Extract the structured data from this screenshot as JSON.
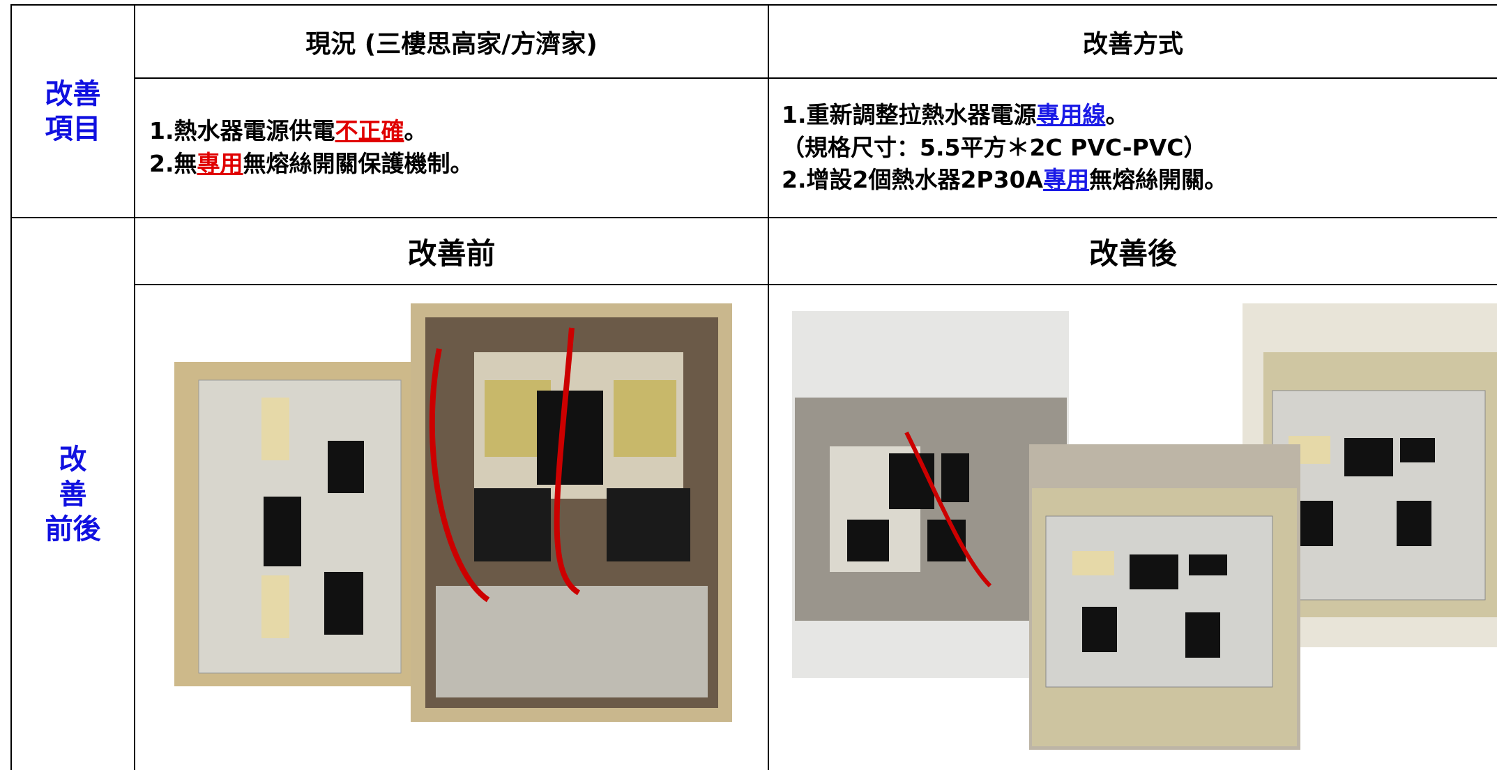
{
  "left_labels": [
    [
      "改善",
      "項目"
    ],
    [
      "改",
      "善",
      "前後"
    ]
  ],
  "headers": [
    "現況 (三樓思高家/方濟家)",
    "改善方式"
  ],
  "current": [
    [
      "1.熱水器電源供電",
      "不正確",
      "。"
    ],
    [
      "2.無",
      "專用",
      "無熔絲開關保護機制。"
    ]
  ],
  "improvement": [
    [
      "1.重新調整拉熱水器電源",
      "專用線",
      "。"
    ],
    [
      "（規格尺寸：5.5平方＊2C PVC-PVC）"
    ],
    [
      "2.增設2個熱水器2P30A",
      "專用",
      "無熔絲開關。"
    ]
  ],
  "compare_headers": [
    "改善前",
    "改善後"
  ]
}
